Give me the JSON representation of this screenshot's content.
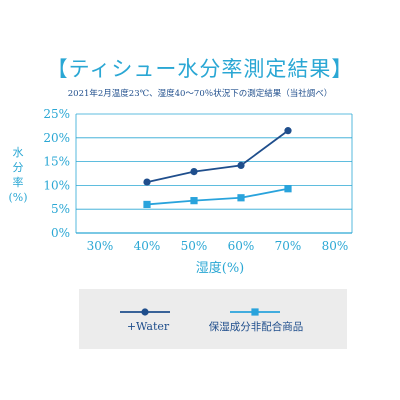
{
  "title": "【ティシュー水分率測定結果】",
  "subtitle": "2021年2月温度23℃、湿度40～70％状況下の測定結果（当社調べ）",
  "colors": {
    "accent": "#2aa7d4",
    "water": "#1f4e8c",
    "baseline": "#29a3dc",
    "legend_bg": "#ececec"
  },
  "chart_data": {
    "type": "line",
    "ylabel_lines": [
      "水",
      "分",
      "率",
      "(%)"
    ],
    "xlabel": "湿度(%)",
    "categories": [
      "30%",
      "40%",
      "50%",
      "60%",
      "70%",
      "80%"
    ],
    "y_ticks": [
      "0%",
      "5%",
      "10%",
      "15%",
      "20%",
      "25%"
    ],
    "ylim": [
      0,
      25
    ],
    "grid": true,
    "legend_position": "bottom",
    "series": [
      {
        "name": "+Water",
        "marker": "circle",
        "x": [
          40,
          50,
          60,
          70
        ],
        "values": [
          10.7,
          12.9,
          14.2,
          21.5
        ]
      },
      {
        "name": "保湿成分非配合商品",
        "marker": "square",
        "x": [
          40,
          50,
          60,
          70
        ],
        "values": [
          6.0,
          6.8,
          7.4,
          9.3
        ]
      }
    ]
  }
}
